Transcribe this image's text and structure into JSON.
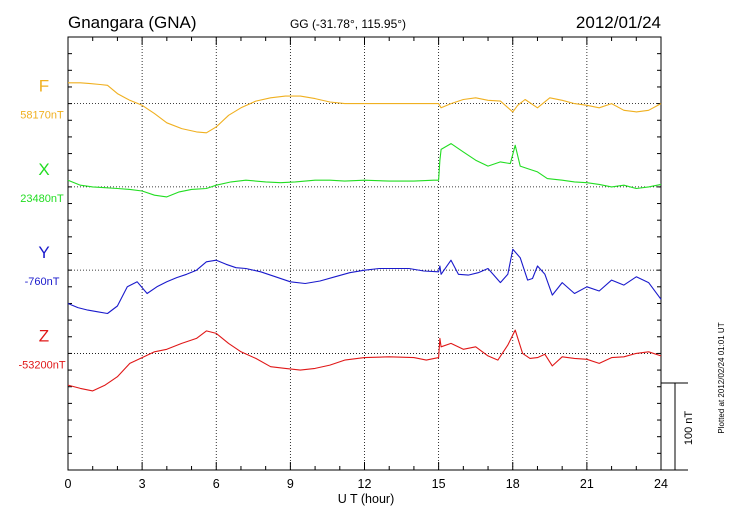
{
  "header": {
    "station": "Gnangara (GNA)",
    "coords": "GG (-31.78°, 115.95°)",
    "date": "2012/01/24"
  },
  "footer_note": "Plotted at 2012/02/24 01:01 UT",
  "chart_data": {
    "type": "line",
    "xlabel": "U T (hour)",
    "x_ticks": [
      "0",
      "3",
      "6",
      "9",
      "12",
      "15",
      "18",
      "21",
      "24"
    ],
    "xlim": [
      0,
      24
    ],
    "y_range_nT": [
      -240,
      280
    ],
    "grid": true,
    "scale_bar": {
      "label": "100 nT",
      "value": 100
    },
    "series": [
      {
        "name": "F",
        "baseline_label": "58170nT",
        "baseline": 58170,
        "color": "#f0b020",
        "offset_nT": 200,
        "points": [
          [
            0,
            25
          ],
          [
            0.5,
            25
          ],
          [
            0.9,
            24
          ],
          [
            1.3,
            23
          ],
          [
            1.6,
            22
          ],
          [
            2.0,
            12
          ],
          [
            2.5,
            4
          ],
          [
            3.0,
            -2
          ],
          [
            3.5,
            -12
          ],
          [
            4.0,
            -23
          ],
          [
            4.6,
            -30
          ],
          [
            5.2,
            -34
          ],
          [
            5.6,
            -35
          ],
          [
            6.0,
            -28
          ],
          [
            6.5,
            -14
          ],
          [
            7.0,
            -5
          ],
          [
            7.6,
            3
          ],
          [
            8.2,
            7
          ],
          [
            8.8,
            9
          ],
          [
            9.4,
            9
          ],
          [
            10.0,
            6
          ],
          [
            10.6,
            2
          ],
          [
            11.2,
            0
          ],
          [
            12,
            0
          ],
          [
            13,
            0
          ],
          [
            14,
            0
          ],
          [
            14.6,
            0
          ],
          [
            15.0,
            0
          ],
          [
            15.1,
            -5
          ],
          [
            15.5,
            0
          ],
          [
            16,
            5
          ],
          [
            16.5,
            7
          ],
          [
            17,
            4
          ],
          [
            17.5,
            3
          ],
          [
            18.0,
            -10
          ],
          [
            18.2,
            -2
          ],
          [
            18.5,
            5
          ],
          [
            19.0,
            -5
          ],
          [
            19.5,
            7
          ],
          [
            20,
            4
          ],
          [
            20.5,
            0
          ],
          [
            21,
            -2
          ],
          [
            21.5,
            -5
          ],
          [
            22,
            0
          ],
          [
            22.5,
            -8
          ],
          [
            23,
            -10
          ],
          [
            23.5,
            -8
          ],
          [
            24,
            0
          ]
        ]
      },
      {
        "name": "X",
        "baseline_label": "23480nT",
        "baseline": 23480,
        "color": "#22dd22",
        "offset_nT": 100,
        "points": [
          [
            0,
            8
          ],
          [
            0.5,
            2
          ],
          [
            1,
            0
          ],
          [
            1.5,
            -1
          ],
          [
            2,
            -2
          ],
          [
            2.5,
            -3
          ],
          [
            3,
            -5
          ],
          [
            3.5,
            -10
          ],
          [
            4,
            -12
          ],
          [
            4.5,
            -6
          ],
          [
            5,
            -3
          ],
          [
            5.6,
            -2
          ],
          [
            6,
            2
          ],
          [
            6.6,
            6
          ],
          [
            7.2,
            8
          ],
          [
            8,
            6
          ],
          [
            8.6,
            5
          ],
          [
            9.2,
            6
          ],
          [
            10,
            8
          ],
          [
            10.6,
            8
          ],
          [
            11.2,
            7
          ],
          [
            12,
            8
          ],
          [
            13,
            7
          ],
          [
            14,
            7
          ],
          [
            14.8,
            8
          ],
          [
            15.0,
            8
          ],
          [
            15.05,
            32
          ],
          [
            15.1,
            45
          ],
          [
            15.5,
            52
          ],
          [
            16,
            42
          ],
          [
            16.5,
            32
          ],
          [
            17,
            25
          ],
          [
            17.5,
            30
          ],
          [
            17.9,
            28
          ],
          [
            18.1,
            50
          ],
          [
            18.3,
            25
          ],
          [
            18.6,
            22
          ],
          [
            19,
            18
          ],
          [
            19.4,
            10
          ],
          [
            20,
            8
          ],
          [
            20.5,
            6
          ],
          [
            21,
            5
          ],
          [
            21.5,
            3
          ],
          [
            22,
            0
          ],
          [
            22.5,
            2
          ],
          [
            23,
            -2
          ],
          [
            23.5,
            0
          ],
          [
            24,
            3
          ]
        ]
      },
      {
        "name": "Y",
        "baseline_label": "-760nT",
        "baseline": -760,
        "color": "#1a1acc",
        "offset_nT": 0,
        "points": [
          [
            0,
            -40
          ],
          [
            0.4,
            -45
          ],
          [
            0.8,
            -48
          ],
          [
            1.2,
            -50
          ],
          [
            1.6,
            -52
          ],
          [
            2.0,
            -43
          ],
          [
            2.4,
            -20
          ],
          [
            2.8,
            -14
          ],
          [
            3.2,
            -28
          ],
          [
            3.6,
            -20
          ],
          [
            4,
            -14
          ],
          [
            4.4,
            -9
          ],
          [
            4.8,
            -5
          ],
          [
            5.2,
            0
          ],
          [
            5.6,
            10
          ],
          [
            6,
            12
          ],
          [
            6.4,
            7
          ],
          [
            6.8,
            3
          ],
          [
            7.2,
            2
          ],
          [
            7.8,
            -2
          ],
          [
            8.4,
            -8
          ],
          [
            9,
            -14
          ],
          [
            9.6,
            -16
          ],
          [
            10.2,
            -13
          ],
          [
            10.8,
            -8
          ],
          [
            11.4,
            -3
          ],
          [
            12,
            0
          ],
          [
            12.6,
            2
          ],
          [
            13.2,
            2
          ],
          [
            13.8,
            2
          ],
          [
            14.4,
            -1
          ],
          [
            15.0,
            -2
          ],
          [
            15.05,
            5
          ],
          [
            15.1,
            -5
          ],
          [
            15.5,
            12
          ],
          [
            15.8,
            -5
          ],
          [
            16.2,
            -6
          ],
          [
            16.6,
            -3
          ],
          [
            17,
            2
          ],
          [
            17.5,
            -15
          ],
          [
            17.8,
            -5
          ],
          [
            18.0,
            25
          ],
          [
            18.3,
            15
          ],
          [
            18.6,
            -12
          ],
          [
            18.8,
            -10
          ],
          [
            19,
            5
          ],
          [
            19.3,
            -5
          ],
          [
            19.6,
            -30
          ],
          [
            20,
            -15
          ],
          [
            20.5,
            -28
          ],
          [
            21,
            -20
          ],
          [
            21.5,
            -25
          ],
          [
            22,
            -12
          ],
          [
            22.5,
            -18
          ],
          [
            23,
            -8
          ],
          [
            23.5,
            -15
          ],
          [
            24,
            -35
          ]
        ]
      },
      {
        "name": "Z",
        "baseline_label": "-53200nT",
        "baseline": -53200,
        "color": "#e01818",
        "offset_nT": -100,
        "points": [
          [
            0,
            -38
          ],
          [
            0.5,
            -42
          ],
          [
            1,
            -45
          ],
          [
            1.5,
            -38
          ],
          [
            2,
            -28
          ],
          [
            2.5,
            -12
          ],
          [
            3,
            -5
          ],
          [
            3.5,
            2
          ],
          [
            4,
            5
          ],
          [
            4.6,
            12
          ],
          [
            5.2,
            18
          ],
          [
            5.6,
            27
          ],
          [
            6,
            24
          ],
          [
            6.5,
            12
          ],
          [
            7,
            2
          ],
          [
            7.6,
            -6
          ],
          [
            8.2,
            -16
          ],
          [
            8.8,
            -18
          ],
          [
            9.4,
            -20
          ],
          [
            10,
            -18
          ],
          [
            10.6,
            -14
          ],
          [
            11.2,
            -8
          ],
          [
            12,
            -5
          ],
          [
            13,
            -4
          ],
          [
            14,
            -5
          ],
          [
            14.5,
            -8
          ],
          [
            15.0,
            -5
          ],
          [
            15.05,
            18
          ],
          [
            15.1,
            8
          ],
          [
            15.5,
            12
          ],
          [
            16,
            5
          ],
          [
            16.5,
            8
          ],
          [
            17,
            -3
          ],
          [
            17.4,
            -8
          ],
          [
            17.8,
            10
          ],
          [
            18.1,
            28
          ],
          [
            18.4,
            0
          ],
          [
            18.7,
            -6
          ],
          [
            19,
            -5
          ],
          [
            19.3,
            -1
          ],
          [
            19.6,
            -15
          ],
          [
            20,
            -4
          ],
          [
            20.5,
            -6
          ],
          [
            21,
            -7
          ],
          [
            21.5,
            -12
          ],
          [
            22,
            -5
          ],
          [
            22.5,
            -4
          ],
          [
            23,
            0
          ],
          [
            23.5,
            2
          ],
          [
            24,
            -3
          ]
        ]
      }
    ]
  }
}
